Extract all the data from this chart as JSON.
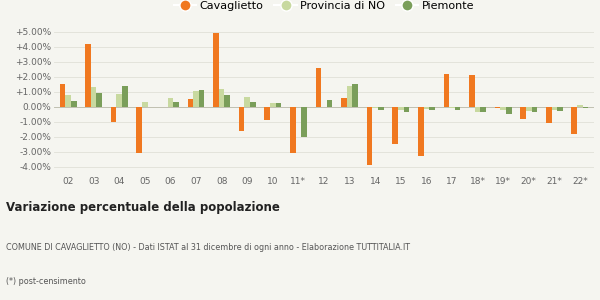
{
  "years": [
    "02",
    "03",
    "04",
    "05",
    "06",
    "07",
    "08",
    "09",
    "10",
    "11*",
    "12",
    "13",
    "14",
    "15",
    "16",
    "17",
    "18*",
    "19*",
    "20*",
    "21*",
    "22*"
  ],
  "cavaglietto": [
    1.5,
    4.2,
    -1.0,
    -3.1,
    0.0,
    0.5,
    4.9,
    -1.6,
    -0.9,
    -3.1,
    2.55,
    0.55,
    -3.9,
    -2.5,
    -3.3,
    2.15,
    2.1,
    -0.1,
    -0.8,
    -1.1,
    -1.8
  ],
  "provincia_no": [
    0.8,
    1.3,
    0.85,
    0.3,
    0.6,
    1.05,
    1.2,
    0.65,
    0.25,
    -0.05,
    -0.05,
    1.4,
    -0.1,
    -0.2,
    -0.15,
    -0.1,
    -0.35,
    -0.25,
    -0.3,
    -0.2,
    0.1
  ],
  "piemonte": [
    0.35,
    0.9,
    1.4,
    0.0,
    0.3,
    1.1,
    0.75,
    0.3,
    0.25,
    -2.05,
    0.45,
    1.5,
    -0.2,
    -0.35,
    -0.2,
    -0.2,
    -0.35,
    -0.5,
    -0.35,
    -0.3,
    -0.1
  ],
  "color_cavaglietto": "#f07820",
  "color_provincia": "#c8d9a0",
  "color_piemonte": "#7a9e5a",
  "title": "Variazione percentuale della popolazione",
  "subtitle": "COMUNE DI CAVAGLIETTO (NO) - Dati ISTAT al 31 dicembre di ogni anno - Elaborazione TUTTITALIA.IT",
  "footnote": "(*) post-censimento",
  "legend_labels": [
    "Cavaglietto",
    "Provincia di NO",
    "Piemonte"
  ],
  "ylim": [
    -4.5,
    5.5
  ],
  "yticks": [
    -4.0,
    -3.0,
    -2.0,
    -1.0,
    0.0,
    1.0,
    2.0,
    3.0,
    4.0,
    5.0
  ],
  "ytick_labels": [
    "-4.00%",
    "-3.00%",
    "-2.00%",
    "-1.00%",
    "0.00%",
    "+1.00%",
    "+2.00%",
    "+3.00%",
    "+4.00%",
    "+5.00%"
  ],
  "background_color": "#f5f5f0",
  "grid_color": "#e0e0d8"
}
